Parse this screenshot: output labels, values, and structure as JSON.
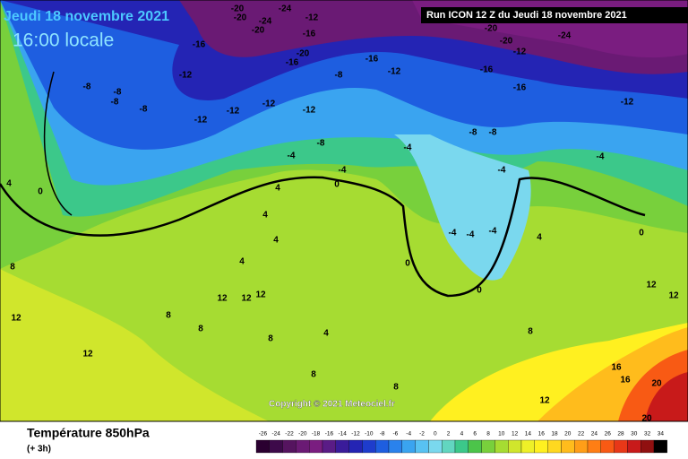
{
  "header": {
    "date": "Jeudi 18 novembre 2021",
    "time": "16:00 locale",
    "run": "Run ICON 12 Z du Jeudi 18 novembre 2021"
  },
  "copyright": "Copyright © 2021 Meteociel.fr",
  "footer": {
    "title": "Température 850hPa",
    "step": "(+ 3h)"
  },
  "legend": {
    "labels": [
      "-26",
      "-24",
      "-22",
      "-20",
      "-18",
      "-16",
      "-14",
      "-12",
      "-10",
      "-8",
      "-6",
      "-4",
      "-2",
      "0",
      "2",
      "4",
      "6",
      "8",
      "10",
      "12",
      "14",
      "16",
      "18",
      "20",
      "22",
      "24",
      "26",
      "28",
      "30",
      "32",
      "34"
    ],
    "colors": [
      "#2a0030",
      "#3d0a4a",
      "#55145f",
      "#6a1a74",
      "#7a1d80",
      "#5a1c86",
      "#3a1c9a",
      "#2424b4",
      "#1e3ccc",
      "#1e5ee0",
      "#2a82ec",
      "#3aa4f0",
      "#58c2f2",
      "#7ad8ee",
      "#62d6c0",
      "#3cc88a",
      "#4cc44a",
      "#78d03c",
      "#a6dc32",
      "#d0e62c",
      "#eef028",
      "#fff020",
      "#ffd820",
      "#ffbc1c",
      "#ff9e18",
      "#ff7e14",
      "#f85a14",
      "#e83818",
      "#c81a1a",
      "#901010",
      "#000000"
    ]
  },
  "map_labels": [
    "-20",
    "-24",
    "-20",
    "-12",
    "-24",
    "-20",
    "-16",
    "-16",
    "-20",
    "-16",
    "-16",
    "-12",
    "-8",
    "-12",
    "-8",
    "-8",
    "-8",
    "-8",
    "-12",
    "-12",
    "-12",
    "-12",
    "-8",
    "-4",
    "-4",
    "-4",
    "-4",
    "-8",
    "-8",
    "-12",
    "-16",
    "-16",
    "-12",
    "-4",
    "-24",
    "-20",
    "-20",
    "0",
    "0",
    "0",
    "0",
    "0",
    "4",
    "4",
    "4",
    "4",
    "12",
    "12",
    "12",
    "8",
    "8",
    "8",
    "12",
    "12",
    "8",
    "4",
    "12",
    "12",
    "16",
    "16",
    "20",
    "20",
    "8",
    "12",
    "4",
    "-4",
    "-4",
    "-4",
    "4",
    "8",
    "8"
  ]
}
